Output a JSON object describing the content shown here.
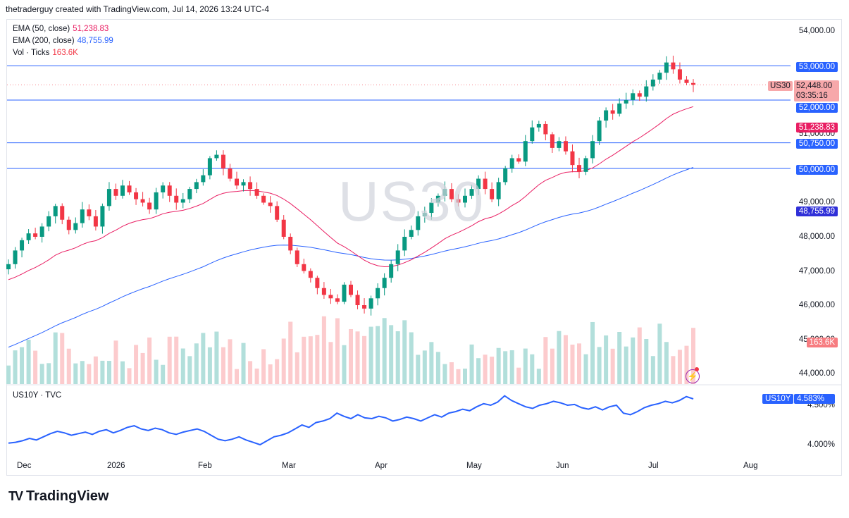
{
  "header": {
    "credit": "thetraderguy created with TradingView.com, Jul 14, 2026 13:24 UTC-4"
  },
  "legend": {
    "ema50": {
      "label": "EMA (50, close)",
      "value": "51,238.83",
      "color": "#e91e63"
    },
    "ema200": {
      "label": "EMA (200, close)",
      "value": "48,755.99",
      "color": "#2962ff"
    },
    "vol": {
      "label": "Vol · Ticks",
      "value": "163.6K",
      "color": "#f23645"
    }
  },
  "watermark": "US30",
  "price_axis": {
    "ticks": [
      "54,000.00",
      "53,000.00",
      "52,000.00",
      "51,000.00",
      "50,750.00",
      "50,000.00",
      "49,000.00",
      "48,000.00",
      "47,000.00",
      "46,000.00",
      "45,000.00",
      "44,000.00"
    ]
  },
  "tags": {
    "level_53000": "53,000.00",
    "level_52000": "52,000.00",
    "level_50750": "50,750.00",
    "level_50000": "50,000.00",
    "ema50": "51,238.83",
    "ema200": "48,755.99",
    "volume": "163.6K",
    "symbol": "US30",
    "last_price": "52,448.00",
    "countdown": "03:35:16"
  },
  "lower_pane": {
    "title": "US10Y · TVC",
    "symbol": "US10Y",
    "value": "4.583%",
    "ticks": [
      "4.500%",
      "4.000%"
    ]
  },
  "time_axis": [
    "Dec",
    "2026",
    "Feb",
    "Mar",
    "Apr",
    "May",
    "Jun",
    "Jul",
    "Aug"
  ],
  "footer": {
    "brand": "TradingView"
  },
  "colors": {
    "up": "#089981",
    "down": "#f23645",
    "ema50": "#e91e63",
    "ema200": "#2962ff",
    "hline": "#2962ff",
    "us10y": "#2962ff"
  },
  "chart_data": [
    {
      "type": "candlestick",
      "title": "US30",
      "y_unit": "points",
      "ylim": [
        43800,
        54300
      ],
      "horizontal_levels": [
        53000,
        52000,
        50750,
        50000
      ],
      "x": [
        "Dec",
        "2026",
        "Feb",
        "Mar",
        "Apr",
        "May",
        "Jun",
        "Jul",
        "Aug"
      ],
      "close_path": [
        47200,
        47600,
        47900,
        48100,
        48000,
        48300,
        48600,
        48900,
        48500,
        48200,
        48400,
        48800,
        48600,
        48300,
        48900,
        49400,
        49200,
        49500,
        49300,
        49100,
        49000,
        48800,
        49300,
        49500,
        49200,
        49000,
        49100,
        49400,
        49600,
        49800,
        50300,
        50400,
        50000,
        49700,
        49500,
        49600,
        49400,
        49200,
        49000,
        48900,
        48500,
        48000,
        47600,
        47200,
        47000,
        46800,
        46500,
        46300,
        46200,
        46100,
        46600,
        46300,
        46000,
        45900,
        46200,
        46500,
        46800,
        47200,
        47600,
        48000,
        48200,
        48600,
        48700,
        49000,
        49200,
        49400,
        49100,
        49000,
        49200,
        49400,
        49700,
        49400,
        49100,
        49600,
        50000,
        50300,
        50200,
        50800,
        51200,
        51300,
        51000,
        50600,
        50800,
        50500,
        50100,
        49900,
        50300,
        50800,
        51400,
        51700,
        51600,
        51900,
        52000,
        52200,
        52100,
        52400,
        52600,
        52800,
        53100,
        52900,
        52600,
        52500,
        52448
      ],
      "ema50": {
        "start": 46700,
        "end": 51238.83
      },
      "ema200": {
        "start": 44700,
        "end": 48755.99
      },
      "volume_last": "163.6K"
    },
    {
      "type": "line",
      "title": "US10Y · TVC",
      "y_unit": "%",
      "ylim": [
        3.8,
        4.75
      ],
      "last": 4.583,
      "values": [
        4.02,
        4.03,
        4.05,
        4.08,
        4.06,
        4.1,
        4.14,
        4.17,
        4.15,
        4.12,
        4.14,
        4.16,
        4.13,
        4.17,
        4.19,
        4.15,
        4.18,
        4.22,
        4.24,
        4.2,
        4.18,
        4.21,
        4.19,
        4.15,
        4.13,
        4.16,
        4.18,
        4.2,
        4.17,
        4.12,
        4.07,
        4.05,
        4.07,
        4.1,
        4.06,
        4.03,
        4.0,
        4.05,
        4.1,
        4.12,
        4.15,
        4.2,
        4.25,
        4.22,
        4.28,
        4.3,
        4.33,
        4.4,
        4.36,
        4.33,
        4.38,
        4.34,
        4.33,
        4.36,
        4.34,
        4.3,
        4.32,
        4.35,
        4.33,
        4.3,
        4.34,
        4.38,
        4.35,
        4.4,
        4.42,
        4.45,
        4.43,
        4.48,
        4.52,
        4.5,
        4.54,
        4.62,
        4.56,
        4.52,
        4.48,
        4.46,
        4.5,
        4.52,
        4.55,
        4.53,
        4.5,
        4.51,
        4.47,
        4.45,
        4.48,
        4.44,
        4.48,
        4.5,
        4.4,
        4.38,
        4.42,
        4.47,
        4.5,
        4.52,
        4.55,
        4.53,
        4.56,
        4.61,
        4.58
      ]
    }
  ]
}
